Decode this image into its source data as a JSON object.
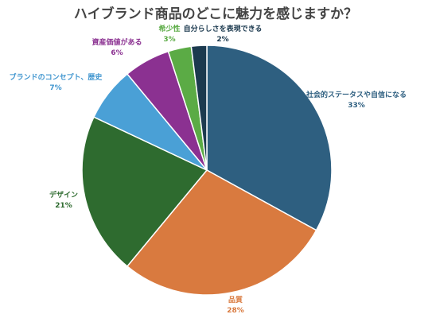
{
  "chart_data": {
    "type": "pie",
    "title": "ハイブランド商品のどこに魅力を感じますか？",
    "slices": [
      {
        "label": "社会的ステータスや自信になる",
        "value": 33,
        "value_label": "33%",
        "color": "#2e5f80",
        "label_color": "#2e5f80"
      },
      {
        "label": "品質",
        "value": 28,
        "value_label": "28%",
        "color": "#d97a3f",
        "label_color": "#d97a3f"
      },
      {
        "label": "デザイン",
        "value": 21,
        "value_label": "21%",
        "color": "#2e6b2f",
        "label_color": "#2e6b2f"
      },
      {
        "label": "ブランドのコンセプト、歴史",
        "value": 7,
        "value_label": "7%",
        "color": "#4aa0d6",
        "label_color": "#3f95cf"
      },
      {
        "label": "資産価値がある",
        "value": 6,
        "value_label": "6%",
        "color": "#8b3191",
        "label_color": "#8b3191"
      },
      {
        "label": "希少性",
        "value": 3,
        "value_label": "3%",
        "color": "#5bab45",
        "label_color": "#5bab45"
      },
      {
        "label": "自分らしさを表現できる",
        "value": 2,
        "value_label": "2%",
        "color": "#1c3a4f",
        "label_color": "#1c3a4f"
      }
    ],
    "start": "12 o'clock",
    "direction": "clockwise",
    "slice_border_color": "#ffffff",
    "legend": "none"
  }
}
